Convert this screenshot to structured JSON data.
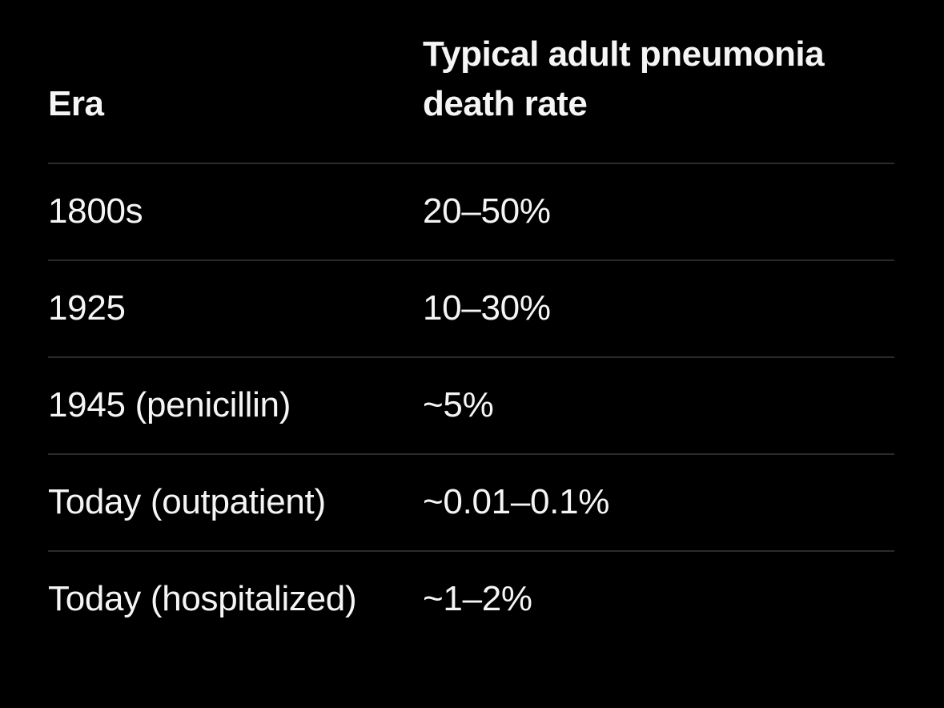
{
  "chart_data": {
    "type": "table",
    "title": "",
    "columns": [
      "Era",
      "Typical adult pneumonia death rate"
    ],
    "rows": [
      [
        "1800s",
        "20–50%"
      ],
      [
        "1925",
        "10–30%"
      ],
      [
        "1945 (penicillin)",
        "~5%"
      ],
      [
        "Today (outpatient)",
        "~0.01–0.1%"
      ],
      [
        "Today (hospitalized)",
        "~1–2%"
      ]
    ],
    "layout": {
      "background_color": "#000000",
      "text_color": "#f5f5f5",
      "divider_color": "#2b2b2b",
      "header_bold": true,
      "grid": "horizontal-dividers-only"
    }
  }
}
